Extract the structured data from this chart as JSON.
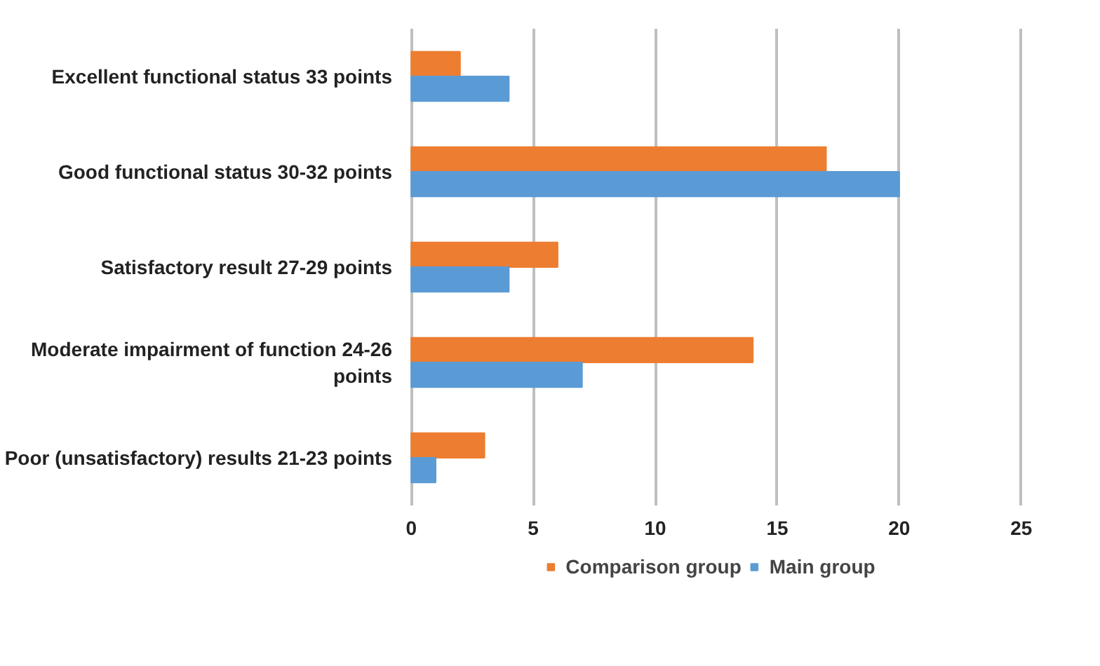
{
  "chart_data": {
    "type": "bar",
    "orientation": "horizontal",
    "categories": [
      "Excellent functional status 33 points",
      "Good functional status 30-32 points",
      "Satisfactory result 27-29 points",
      "Moderate impairment of function 24-26 points",
      "Poor (unsatisfactory) results 21-23 points"
    ],
    "series": [
      {
        "name": "Comparison group",
        "color": "#ed7d31",
        "values": [
          2,
          17,
          6,
          14,
          3
        ]
      },
      {
        "name": "Main group",
        "color": "#5b9bd5",
        "values": [
          4,
          20,
          4,
          7,
          1
        ]
      }
    ],
    "xlim": [
      0,
      25
    ],
    "xticks": [
      0,
      5,
      10,
      15,
      20,
      25
    ],
    "grid": "x",
    "legend": "bottom"
  }
}
